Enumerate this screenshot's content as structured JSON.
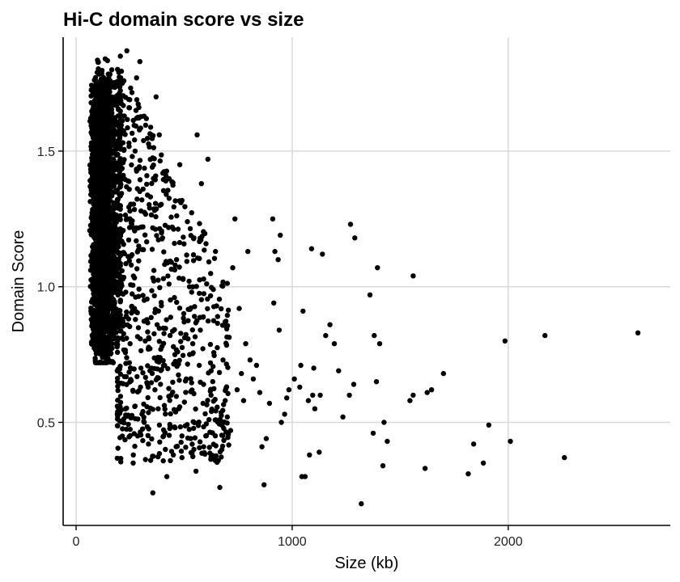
{
  "chart_data": {
    "type": "scatter",
    "title": "Hi-C domain score vs size",
    "xlabel": "Size (kb)",
    "ylabel": "Domain Score",
    "xlim": [
      -60,
      2750
    ],
    "ylim": [
      0.12,
      1.92
    ],
    "xticks": [
      0,
      1000,
      2000
    ],
    "xtick_labels": [
      "0",
      "1000",
      "2000"
    ],
    "yticks": [
      0.5,
      1.0,
      1.5
    ],
    "ytick_labels": [
      "0.5",
      "1.0",
      "1.5"
    ],
    "grid": "major",
    "point_color": "#000000",
    "series": [
      {
        "name": "",
        "description_dense_cluster": "about 3000 points concentrated at sizes 60-200 kb with scores 0.7-1.87",
        "points": [
          [
            2600,
            0.83
          ],
          [
            2260,
            0.37
          ],
          [
            2170,
            0.82
          ],
          [
            2010,
            0.43
          ],
          [
            1985,
            0.8
          ],
          [
            1910,
            0.49
          ],
          [
            1885,
            0.35
          ],
          [
            1840,
            0.42
          ],
          [
            1815,
            0.31
          ],
          [
            1700,
            0.68
          ],
          [
            1645,
            0.62
          ],
          [
            1625,
            0.61
          ],
          [
            1615,
            0.33
          ],
          [
            1560,
            1.04
          ],
          [
            1560,
            0.6
          ],
          [
            1545,
            0.58
          ],
          [
            1440,
            0.43
          ],
          [
            1425,
            0.5
          ],
          [
            1420,
            0.34
          ],
          [
            1405,
            0.79
          ],
          [
            1395,
            1.07
          ],
          [
            1390,
            0.65
          ],
          [
            1380,
            0.82
          ],
          [
            1375,
            0.46
          ],
          [
            1360,
            0.97
          ],
          [
            1320,
            0.2
          ],
          [
            1290,
            1.18
          ],
          [
            1285,
            0.64
          ],
          [
            1270,
            1.23
          ],
          [
            1265,
            0.6
          ],
          [
            1235,
            0.52
          ],
          [
            1215,
            0.69
          ],
          [
            1195,
            0.79
          ],
          [
            1175,
            0.86
          ],
          [
            1155,
            0.82
          ],
          [
            1140,
            1.12
          ],
          [
            1130,
            0.6
          ],
          [
            1125,
            0.39
          ],
          [
            1105,
            0.55
          ],
          [
            1100,
            0.7
          ],
          [
            1095,
            0.6
          ],
          [
            1090,
            1.14
          ],
          [
            1080,
            0.38
          ],
          [
            1075,
            0.58
          ],
          [
            1060,
            0.3
          ],
          [
            1045,
            0.3
          ],
          [
            1050,
            0.91
          ],
          [
            1040,
            0.71
          ],
          [
            1035,
            0.63
          ],
          [
            1010,
            0.66
          ],
          [
            985,
            0.62
          ],
          [
            975,
            0.59
          ],
          [
            965,
            0.53
          ],
          [
            950,
            0.5
          ],
          [
            945,
            1.19
          ],
          [
            940,
            0.84
          ],
          [
            935,
            1.1
          ],
          [
            920,
            1.13
          ],
          [
            915,
            0.94
          ],
          [
            910,
            1.25
          ],
          [
            895,
            0.57
          ],
          [
            880,
            0.44
          ],
          [
            870,
            0.27
          ],
          [
            860,
            0.41
          ],
          [
            850,
            0.61
          ],
          [
            835,
            0.71
          ],
          [
            820,
            0.66
          ],
          [
            805,
            0.73
          ],
          [
            795,
            1.13
          ],
          [
            785,
            0.79
          ],
          [
            775,
            0.58
          ],
          [
            765,
            0.68
          ],
          [
            755,
            0.92
          ],
          [
            745,
            0.62
          ],
          [
            735,
            1.25
          ],
          [
            725,
            1.07
          ],
          [
            715,
            0.47
          ],
          [
            700,
            0.52
          ],
          [
            690,
            0.58
          ],
          [
            680,
            0.73
          ],
          [
            665,
            0.26
          ],
          [
            655,
            0.89
          ],
          [
            645,
            1.13
          ],
          [
            635,
            0.99
          ],
          [
            625,
            0.69
          ],
          [
            615,
            0.51
          ],
          [
            610,
            1.47
          ],
          [
            600,
            0.45
          ],
          [
            590,
            0.64
          ],
          [
            580,
            1.38
          ],
          [
            575,
            0.84
          ],
          [
            570,
            0.71
          ],
          [
            560,
            1.56
          ],
          [
            555,
            0.32
          ],
          [
            545,
            1.18
          ],
          [
            540,
            0.79
          ],
          [
            535,
            0.98
          ],
          [
            530,
            0.44
          ],
          [
            525,
            1.0
          ],
          [
            515,
            1.24
          ],
          [
            510,
            0.66
          ],
          [
            500,
            0.87
          ],
          [
            495,
            1.03
          ],
          [
            490,
            0.37
          ],
          [
            485,
            1.31
          ],
          [
            480,
            1.45
          ],
          [
            475,
            0.55
          ],
          [
            470,
            0.76
          ],
          [
            465,
            1.1
          ],
          [
            455,
            0.96
          ],
          [
            450,
            0.38
          ],
          [
            445,
            1.22
          ],
          [
            440,
            0.6
          ],
          [
            435,
            0.82
          ],
          [
            430,
            1.01
          ],
          [
            420,
            0.3
          ],
          [
            415,
            1.39
          ],
          [
            410,
            0.71
          ],
          [
            405,
            0.45
          ],
          [
            400,
            1.18
          ],
          [
            395,
            0.93
          ],
          [
            385,
            1.56
          ],
          [
            380,
            0.55
          ],
          [
            375,
            0.86
          ],
          [
            370,
            1.7
          ],
          [
            365,
            0.62
          ],
          [
            360,
            1.06
          ],
          [
            355,
            0.24
          ],
          [
            345,
            0.36
          ],
          [
            340,
            1.29
          ],
          [
            335,
            0.42
          ],
          [
            330,
            0.64
          ],
          [
            325,
            1.62
          ],
          [
            320,
            0.8
          ],
          [
            315,
            0.95
          ],
          [
            310,
            1.36
          ],
          [
            305,
            0.53
          ],
          [
            300,
            0.7
          ],
          [
            295,
            1.83
          ],
          [
            290,
            1.15
          ],
          [
            285,
            0.45
          ],
          [
            280,
            1.77
          ],
          [
            270,
            0.92
          ],
          [
            265,
            0.38
          ],
          [
            260,
            1.48
          ],
          [
            255,
            1.08
          ],
          [
            250,
            0.79
          ],
          [
            245,
            1.66
          ],
          [
            240,
            1.25
          ],
          [
            235,
            1.87
          ],
          [
            230,
            0.98
          ],
          [
            220,
            1.4
          ],
          [
            215,
            0.88
          ],
          [
            210,
            1.58
          ],
          [
            205,
            1.85
          ],
          [
            200,
            1.18
          ],
          [
            195,
            0.85
          ],
          [
            190,
            1.74
          ],
          [
            180,
            1.02
          ],
          [
            175,
            1.52
          ],
          [
            165,
            1.8
          ],
          [
            160,
            0.82
          ],
          [
            155,
            1.28
          ],
          [
            150,
            1.66
          ],
          [
            145,
            0.75
          ],
          [
            140,
            1.42
          ],
          [
            135,
            1.84
          ],
          [
            130,
            0.92
          ],
          [
            125,
            1.22
          ],
          [
            120,
            1.6
          ],
          [
            115,
            1.0
          ],
          [
            110,
            1.48
          ],
          [
            105,
            0.8
          ],
          [
            100,
            1.15
          ],
          [
            95,
            1.35
          ],
          [
            90,
            0.72
          ],
          [
            85,
            1.05
          ],
          [
            80,
            0.9
          ],
          [
            75,
            1.25
          ]
        ]
      }
    ]
  }
}
